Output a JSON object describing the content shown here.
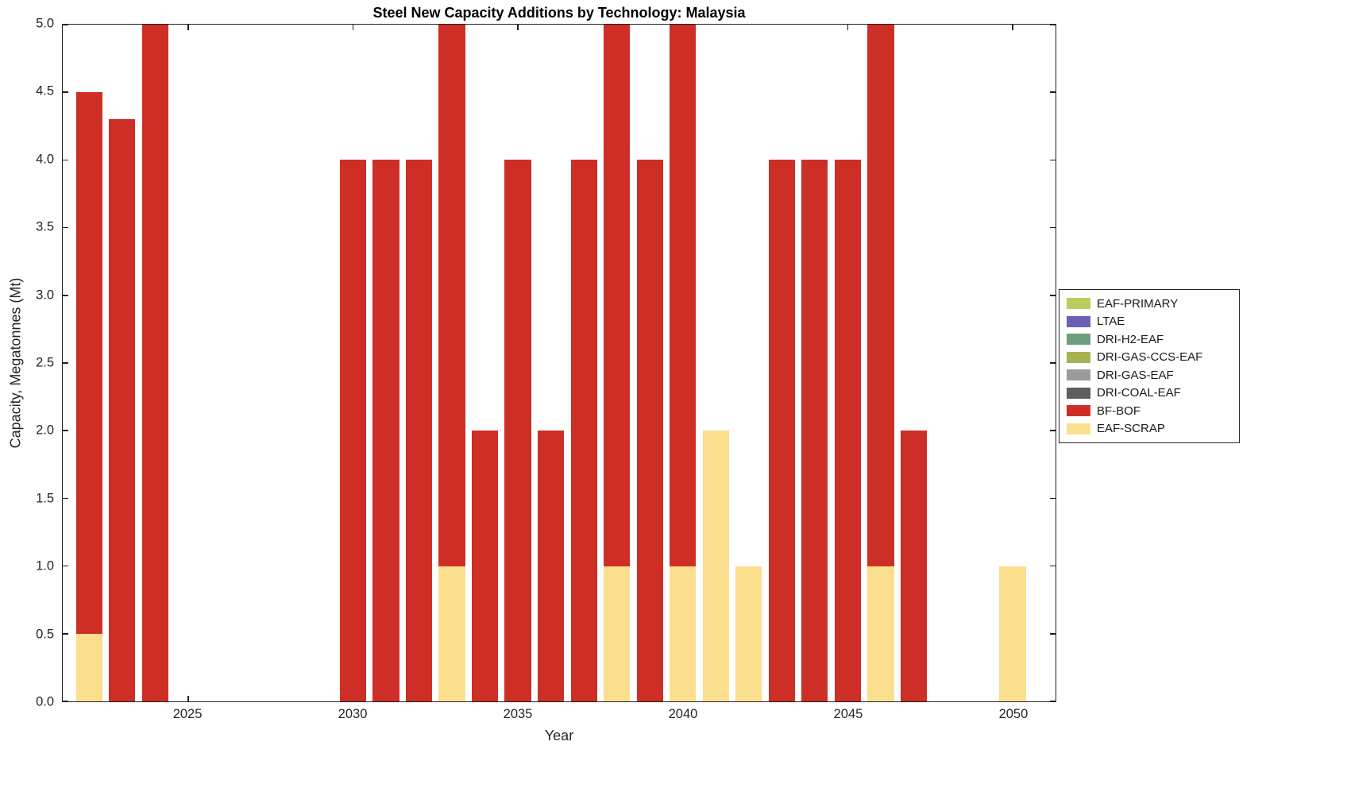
{
  "chart_data": {
    "type": "bar",
    "stacked": true,
    "title": "Steel New Capacity Additions by Technology: Malaysia",
    "xlabel": "Year",
    "ylabel": "Capacity, Megatonnes (Mt)",
    "xlim": [
      2021.2,
      2051.3
    ],
    "ylim": [
      0,
      5
    ],
    "bar_width": 0.8,
    "grid": false,
    "legend_position": "outside-right",
    "xticks": [
      "2025",
      "2030",
      "2035",
      "2040",
      "2045",
      "2050"
    ],
    "yticks": [
      "0.0",
      "0.5",
      "1.0",
      "1.5",
      "2.0",
      "2.5",
      "3.0",
      "3.5",
      "4.0",
      "4.5",
      "5.0"
    ],
    "legend": [
      {
        "label": "EAF-PRIMARY",
        "color": "#bccd5f"
      },
      {
        "label": "LTAE",
        "color": "#6a60b4"
      },
      {
        "label": "DRI-H2-EAF",
        "color": "#6f9e7f"
      },
      {
        "label": "DRI-GAS-CCS-EAF",
        "color": "#a9b252"
      },
      {
        "label": "DRI-GAS-EAF",
        "color": "#9b9b9b"
      },
      {
        "label": "DRI-COAL-EAF",
        "color": "#5f5f5f"
      },
      {
        "label": "BF-BOF",
        "color": "#cd2f26"
      },
      {
        "label": "EAF-SCRAP",
        "color": "#fbdf8e"
      }
    ],
    "bars": [
      {
        "year": 2022,
        "segments": [
          {
            "tech": "EAF-SCRAP",
            "value": 0.5
          },
          {
            "tech": "BF-BOF",
            "value": 4.0
          }
        ]
      },
      {
        "year": 2023,
        "segments": [
          {
            "tech": "BF-BOF",
            "value": 4.3
          }
        ]
      },
      {
        "year": 2024,
        "segments": [
          {
            "tech": "BF-BOF",
            "value": 5.0
          }
        ]
      },
      {
        "year": 2030,
        "segments": [
          {
            "tech": "BF-BOF",
            "value": 4.0
          }
        ]
      },
      {
        "year": 2031,
        "segments": [
          {
            "tech": "BF-BOF",
            "value": 4.0
          }
        ]
      },
      {
        "year": 2032,
        "segments": [
          {
            "tech": "BF-BOF",
            "value": 4.0
          }
        ]
      },
      {
        "year": 2033,
        "segments": [
          {
            "tech": "EAF-SCRAP",
            "value": 1.0
          },
          {
            "tech": "BF-BOF",
            "value": 4.0
          }
        ]
      },
      {
        "year": 2034,
        "segments": [
          {
            "tech": "BF-BOF",
            "value": 2.0
          }
        ]
      },
      {
        "year": 2035,
        "segments": [
          {
            "tech": "BF-BOF",
            "value": 4.0
          }
        ]
      },
      {
        "year": 2036,
        "segments": [
          {
            "tech": "BF-BOF",
            "value": 2.0
          }
        ]
      },
      {
        "year": 2037,
        "segments": [
          {
            "tech": "BF-BOF",
            "value": 4.0
          }
        ]
      },
      {
        "year": 2038,
        "segments": [
          {
            "tech": "EAF-SCRAP",
            "value": 1.0
          },
          {
            "tech": "BF-BOF",
            "value": 4.0
          }
        ]
      },
      {
        "year": 2039,
        "segments": [
          {
            "tech": "BF-BOF",
            "value": 4.0
          }
        ]
      },
      {
        "year": 2040,
        "segments": [
          {
            "tech": "EAF-SCRAP",
            "value": 1.0
          },
          {
            "tech": "BF-BOF",
            "value": 4.0
          }
        ]
      },
      {
        "year": 2041,
        "segments": [
          {
            "tech": "EAF-SCRAP",
            "value": 2.0
          }
        ]
      },
      {
        "year": 2042,
        "segments": [
          {
            "tech": "EAF-SCRAP",
            "value": 1.0
          }
        ]
      },
      {
        "year": 2043,
        "segments": [
          {
            "tech": "BF-BOF",
            "value": 4.0
          }
        ]
      },
      {
        "year": 2044,
        "segments": [
          {
            "tech": "BF-BOF",
            "value": 4.0
          }
        ]
      },
      {
        "year": 2045,
        "segments": [
          {
            "tech": "BF-BOF",
            "value": 4.0
          }
        ]
      },
      {
        "year": 2046,
        "segments": [
          {
            "tech": "EAF-SCRAP",
            "value": 1.0
          },
          {
            "tech": "BF-BOF",
            "value": 4.0
          }
        ]
      },
      {
        "year": 2047,
        "segments": [
          {
            "tech": "BF-BOF",
            "value": 2.0
          }
        ]
      },
      {
        "year": 2050,
        "segments": [
          {
            "tech": "EAF-SCRAP",
            "value": 1.0
          }
        ]
      }
    ]
  }
}
